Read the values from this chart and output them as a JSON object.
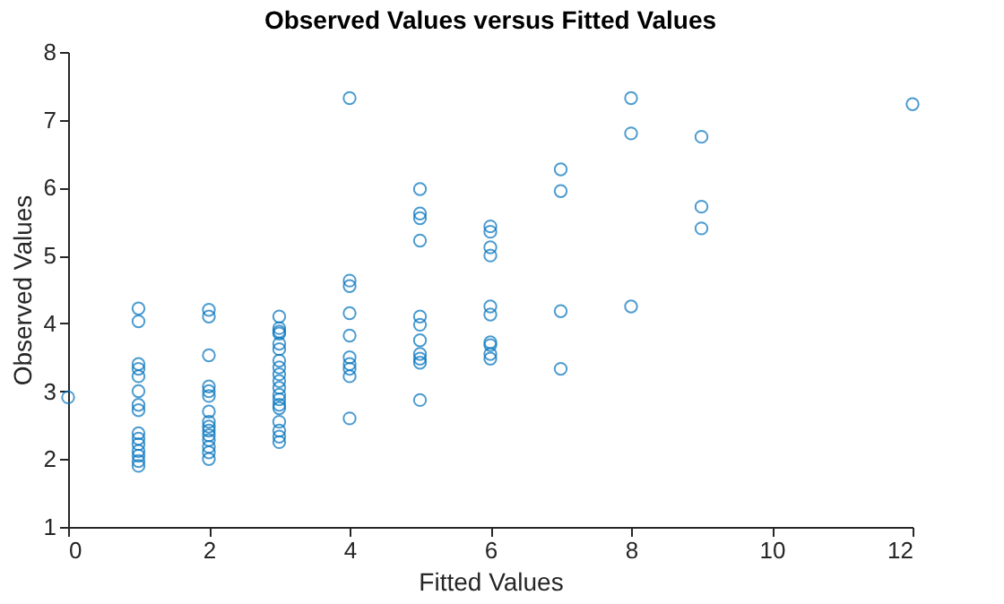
{
  "chart_data": {
    "type": "scatter",
    "title": "Observed Values versus Fitted Values",
    "xlabel": "Fitted Values",
    "ylabel": "Observed Values",
    "marker": "circle",
    "grid": false,
    "xlim": [
      0,
      12
    ],
    "xticks": [
      0,
      2,
      4,
      6,
      8,
      10,
      12
    ],
    "ylim": [
      1,
      8
    ],
    "yticks": [
      1,
      2,
      3,
      4,
      5,
      6,
      7,
      8
    ],
    "series": [
      {
        "color": "#0072bd",
        "x": [
          0,
          1,
          1,
          1,
          1,
          1,
          1,
          1,
          1,
          1,
          1,
          1,
          1,
          1,
          1,
          1,
          2,
          2,
          2,
          2,
          2,
          2,
          2,
          2,
          2,
          2,
          2,
          2,
          2,
          2,
          2,
          3,
          3,
          3,
          3,
          3,
          3,
          3,
          3,
          3,
          3,
          3,
          3,
          3,
          3,
          3,
          3,
          3,
          3,
          3,
          4,
          4,
          4,
          4,
          4,
          4,
          4,
          4,
          4,
          4,
          5,
          5,
          5,
          5,
          5,
          5,
          5,
          5,
          5,
          5,
          5,
          6,
          6,
          6,
          6,
          6,
          6,
          6,
          6,
          6,
          6,
          7,
          7,
          7,
          7,
          8,
          8,
          8,
          9,
          9,
          9,
          12
        ],
        "values": [
          2.91,
          4.22,
          4.03,
          3.4,
          3.33,
          3.22,
          3.0,
          2.8,
          2.72,
          2.38,
          2.3,
          2.22,
          2.12,
          2.05,
          1.97,
          1.9,
          4.2,
          4.1,
          3.53,
          3.07,
          3.0,
          2.93,
          2.7,
          2.55,
          2.48,
          2.42,
          2.35,
          2.28,
          2.18,
          2.1,
          2.0,
          4.1,
          3.93,
          3.88,
          3.85,
          3.7,
          3.62,
          3.45,
          3.35,
          3.25,
          3.15,
          3.05,
          2.95,
          2.88,
          2.8,
          2.75,
          2.55,
          2.42,
          2.33,
          2.25,
          7.32,
          4.63,
          4.55,
          4.15,
          3.82,
          3.5,
          3.4,
          3.33,
          3.22,
          2.6,
          5.98,
          5.62,
          5.55,
          5.22,
          4.1,
          3.98,
          3.75,
          3.55,
          3.48,
          3.42,
          2.87,
          5.43,
          5.35,
          5.12,
          5.0,
          4.25,
          4.13,
          3.72,
          3.68,
          3.55,
          3.48,
          6.27,
          5.95,
          4.18,
          3.33,
          7.32,
          6.8,
          4.25,
          6.75,
          5.72,
          5.4,
          7.23
        ]
      }
    ]
  }
}
